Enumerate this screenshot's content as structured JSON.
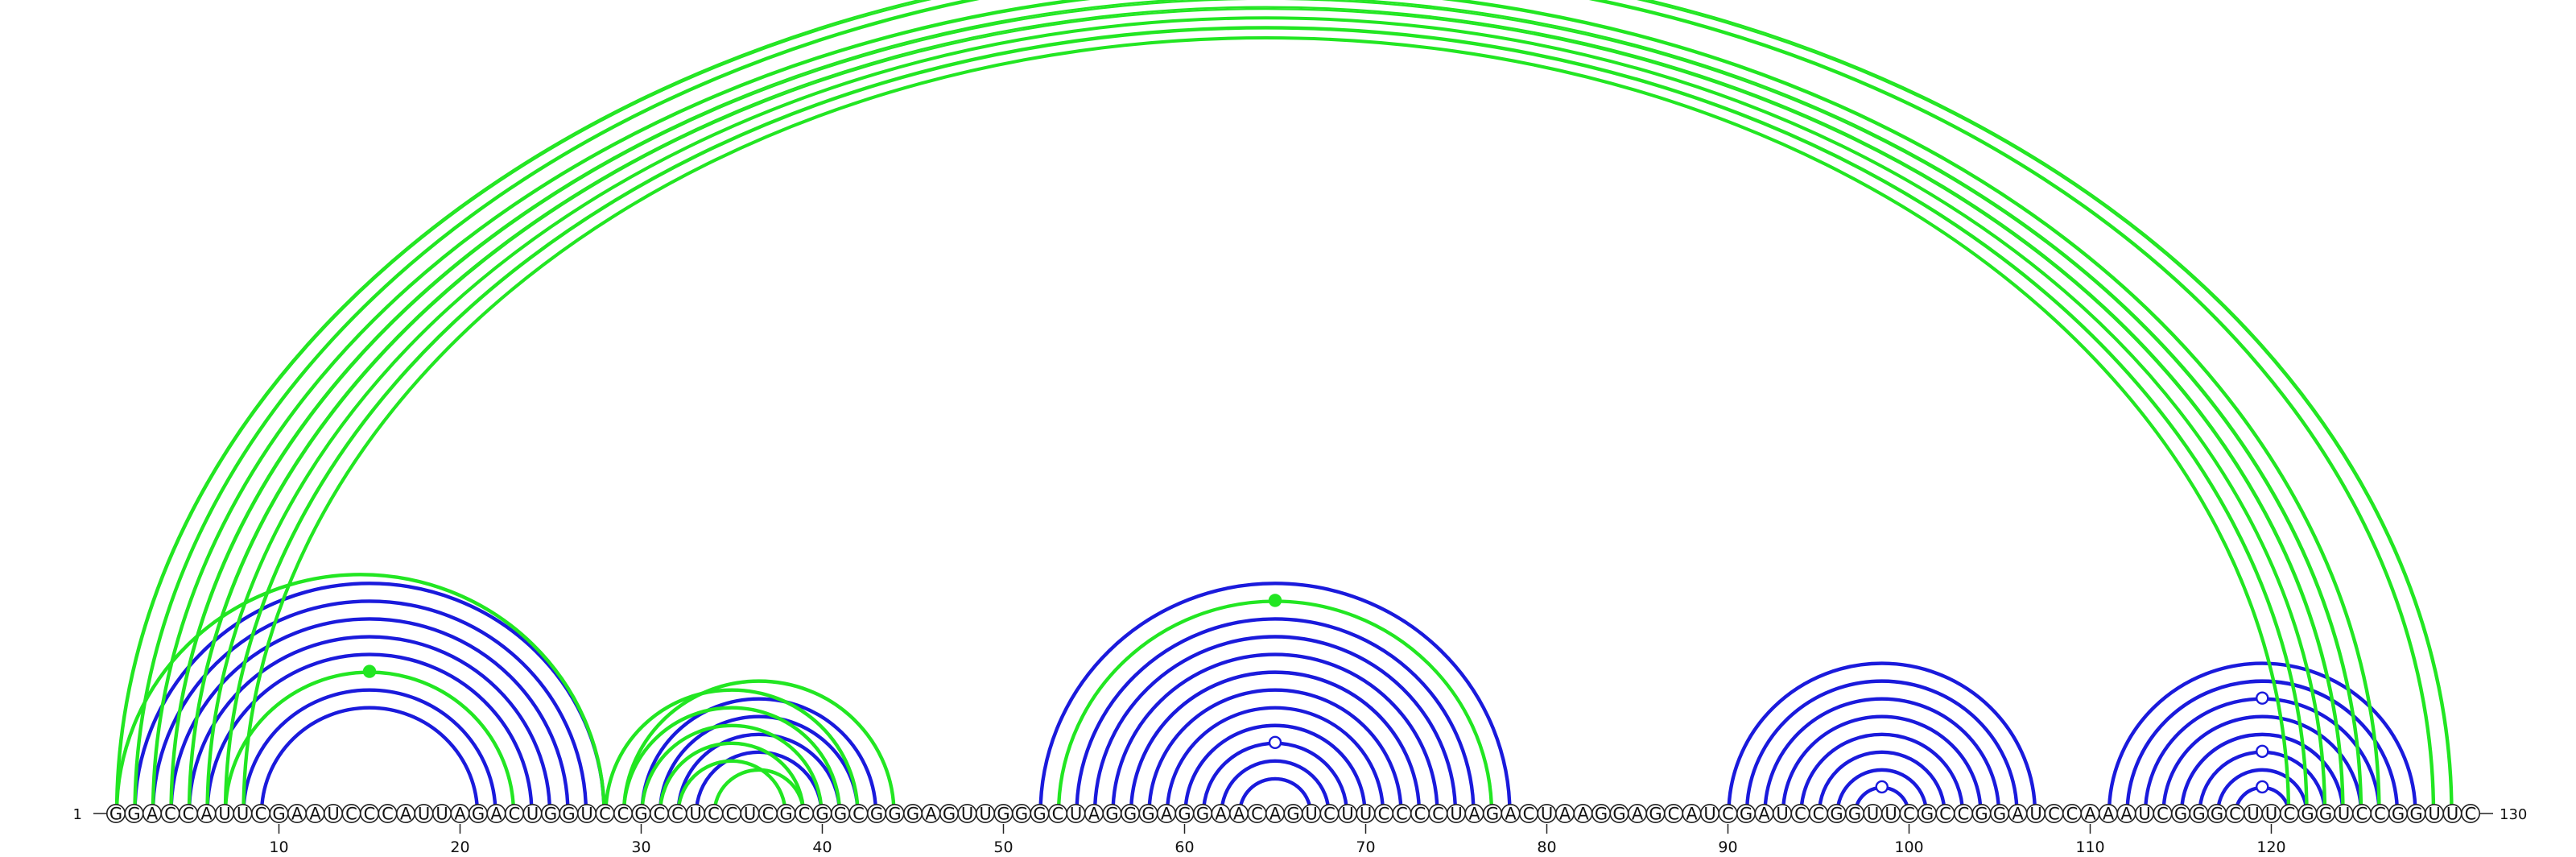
{
  "sequence": "GGACCAUUCGAAUCCCAUUAGACUGGUCCGCCUCCUCGCGGCGGGAGUUGGGCUAGGGAGGAACAGUCUUCCCCUAGACUAAGGAGCAUCGAUCCGGUUCGCCGGAUCCAAAUCGGGCUUCGGUCCGGUUC",
  "axis": {
    "start_label": "1",
    "end_label": "130",
    "ticks": [
      {
        "pos": 10,
        "label": "10"
      },
      {
        "pos": 20,
        "label": "20"
      },
      {
        "pos": 30,
        "label": "30"
      },
      {
        "pos": 40,
        "label": "40"
      },
      {
        "pos": 50,
        "label": "50"
      },
      {
        "pos": 60,
        "label": "60"
      },
      {
        "pos": 70,
        "label": "70"
      },
      {
        "pos": 80,
        "label": "80"
      },
      {
        "pos": 90,
        "label": "90"
      },
      {
        "pos": 100,
        "label": "100"
      },
      {
        "pos": 110,
        "label": "110"
      },
      {
        "pos": 120,
        "label": "120"
      }
    ]
  },
  "colors": {
    "blue": "#1a1adc",
    "green": "#22e622"
  },
  "arcs": [
    {
      "i": 3,
      "j": 27,
      "color": "blue"
    },
    {
      "i": 4,
      "j": 26,
      "color": "blue"
    },
    {
      "i": 5,
      "j": 25,
      "color": "blue"
    },
    {
      "i": 6,
      "j": 24,
      "color": "blue"
    },
    {
      "i": 7,
      "j": 23,
      "color": "green"
    },
    {
      "i": 8,
      "j": 22,
      "color": "blue"
    },
    {
      "i": 9,
      "j": 21,
      "color": "blue"
    },
    {
      "i": 2,
      "j": 28,
      "color": "blue"
    },
    {
      "i": 1,
      "j": 28,
      "color": "green"
    },
    {
      "i": 30,
      "j": 43,
      "color": "blue"
    },
    {
      "i": 31,
      "j": 42,
      "color": "blue"
    },
    {
      "i": 32,
      "j": 41,
      "color": "blue"
    },
    {
      "i": 33,
      "j": 40,
      "color": "blue"
    },
    {
      "i": 34,
      "j": 39,
      "color": "green"
    },
    {
      "i": 29,
      "j": 44,
      "color": "green"
    },
    {
      "i": 28,
      "j": 42,
      "color": "green"
    },
    {
      "i": 29,
      "j": 41,
      "color": "green"
    },
    {
      "i": 30,
      "j": 40,
      "color": "green"
    },
    {
      "i": 31,
      "j": 39,
      "color": "green"
    },
    {
      "i": 32,
      "j": 38,
      "color": "green"
    },
    {
      "i": 52,
      "j": 78,
      "color": "blue"
    },
    {
      "i": 53,
      "j": 77,
      "color": "green"
    },
    {
      "i": 54,
      "j": 76,
      "color": "blue"
    },
    {
      "i": 55,
      "j": 75,
      "color": "blue"
    },
    {
      "i": 56,
      "j": 74,
      "color": "blue"
    },
    {
      "i": 57,
      "j": 73,
      "color": "blue"
    },
    {
      "i": 58,
      "j": 72,
      "color": "blue"
    },
    {
      "i": 59,
      "j": 71,
      "color": "blue"
    },
    {
      "i": 60,
      "j": 70,
      "color": "blue"
    },
    {
      "i": 61,
      "j": 69,
      "color": "blue"
    },
    {
      "i": 62,
      "j": 68,
      "color": "blue"
    },
    {
      "i": 63,
      "j": 67,
      "color": "blue"
    },
    {
      "i": 90,
      "j": 107,
      "color": "blue"
    },
    {
      "i": 91,
      "j": 106,
      "color": "blue"
    },
    {
      "i": 92,
      "j": 105,
      "color": "blue"
    },
    {
      "i": 93,
      "j": 104,
      "color": "blue"
    },
    {
      "i": 94,
      "j": 103,
      "color": "blue"
    },
    {
      "i": 95,
      "j": 102,
      "color": "blue"
    },
    {
      "i": 96,
      "j": 101,
      "color": "blue"
    },
    {
      "i": 97,
      "j": 100,
      "color": "blue"
    },
    {
      "i": 111,
      "j": 128,
      "color": "blue"
    },
    {
      "i": 112,
      "j": 127,
      "color": "blue"
    },
    {
      "i": 113,
      "j": 126,
      "color": "blue"
    },
    {
      "i": 114,
      "j": 125,
      "color": "blue"
    },
    {
      "i": 115,
      "j": 124,
      "color": "blue"
    },
    {
      "i": 116,
      "j": 123,
      "color": "blue"
    },
    {
      "i": 117,
      "j": 122,
      "color": "blue"
    },
    {
      "i": 118,
      "j": 121,
      "color": "blue"
    },
    {
      "i": 1,
      "j": 130,
      "color": "green"
    },
    {
      "i": 2,
      "j": 129,
      "color": "green"
    },
    {
      "i": 3,
      "j": 126,
      "color": "green"
    },
    {
      "i": 4,
      "j": 125,
      "color": "green"
    },
    {
      "i": 5,
      "j": 124,
      "color": "green"
    },
    {
      "i": 6,
      "j": 123,
      "color": "green"
    },
    {
      "i": 7,
      "j": 122,
      "color": "green"
    },
    {
      "i": 8,
      "j": 121,
      "color": "green"
    }
  ],
  "markers": [
    {
      "i": 1,
      "j": 130,
      "color": "green",
      "filled": false
    },
    {
      "i": 7,
      "j": 23,
      "color": "green",
      "filled": true
    },
    {
      "i": 53,
      "j": 77,
      "color": "green",
      "filled": true
    },
    {
      "i": 61,
      "j": 69,
      "color": "blue",
      "filled": false
    },
    {
      "i": 97,
      "j": 100,
      "color": "blue",
      "filled": false
    },
    {
      "i": 113,
      "j": 126,
      "color": "blue",
      "filled": false
    },
    {
      "i": 116,
      "j": 123,
      "color": "blue",
      "filled": false
    },
    {
      "i": 118,
      "j": 121,
      "color": "blue",
      "filled": false
    }
  ]
}
